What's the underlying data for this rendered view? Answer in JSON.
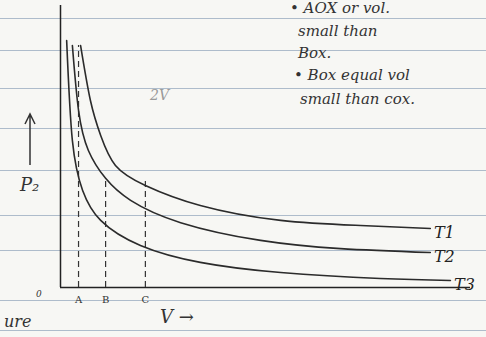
{
  "chart_data": {
    "type": "line",
    "xlabel": "V →",
    "ylabel": "P₂",
    "origin_label": "0",
    "xlim": [
      0,
      100
    ],
    "ylim": [
      0,
      100
    ],
    "xticks": [],
    "yticks": [],
    "tick_labels": false,
    "series": [
      {
        "name": "T1",
        "color": "#2b2b2b",
        "x": [
          4.9,
          7.3,
          9.8,
          13.4,
          20.7,
          34.1,
          53.7,
          73.2,
          90.2
        ],
        "values": [
          85.8,
          66.3,
          53.9,
          43.3,
          36.2,
          29.1,
          23.8,
          22.0,
          20.9
        ]
      },
      {
        "name": "T2",
        "color": "#2b2b2b",
        "x": [
          2.9,
          4.4,
          6.8,
          11.0,
          17.1,
          29.3,
          48.8,
          68.3,
          90.2
        ],
        "values": [
          85.8,
          62.8,
          48.6,
          38.7,
          30.9,
          23.0,
          16.7,
          13.8,
          12.4
        ]
      },
      {
        "name": "T3",
        "color": "#2b2b2b",
        "x": [
          1.5,
          2.9,
          5.4,
          9.8,
          19.5,
          34.1,
          53.7,
          78.0,
          95.1
        ],
        "values": [
          87.6,
          52.1,
          34.4,
          23.8,
          14.9,
          8.9,
          5.3,
          3.2,
          2.5
        ]
      }
    ],
    "markers": [
      {
        "label": "A",
        "x": 4.4,
        "y": 85.8
      },
      {
        "label": "B",
        "x": 11.0,
        "y": 38.7
      },
      {
        "label": "C",
        "x": 20.7,
        "y": 37.9
      }
    ],
    "annotations": [
      "• AOX or vol.",
      "small than",
      "Box.",
      "• Box equal vol",
      "small than cox.",
      "2V",
      "ure"
    ]
  }
}
